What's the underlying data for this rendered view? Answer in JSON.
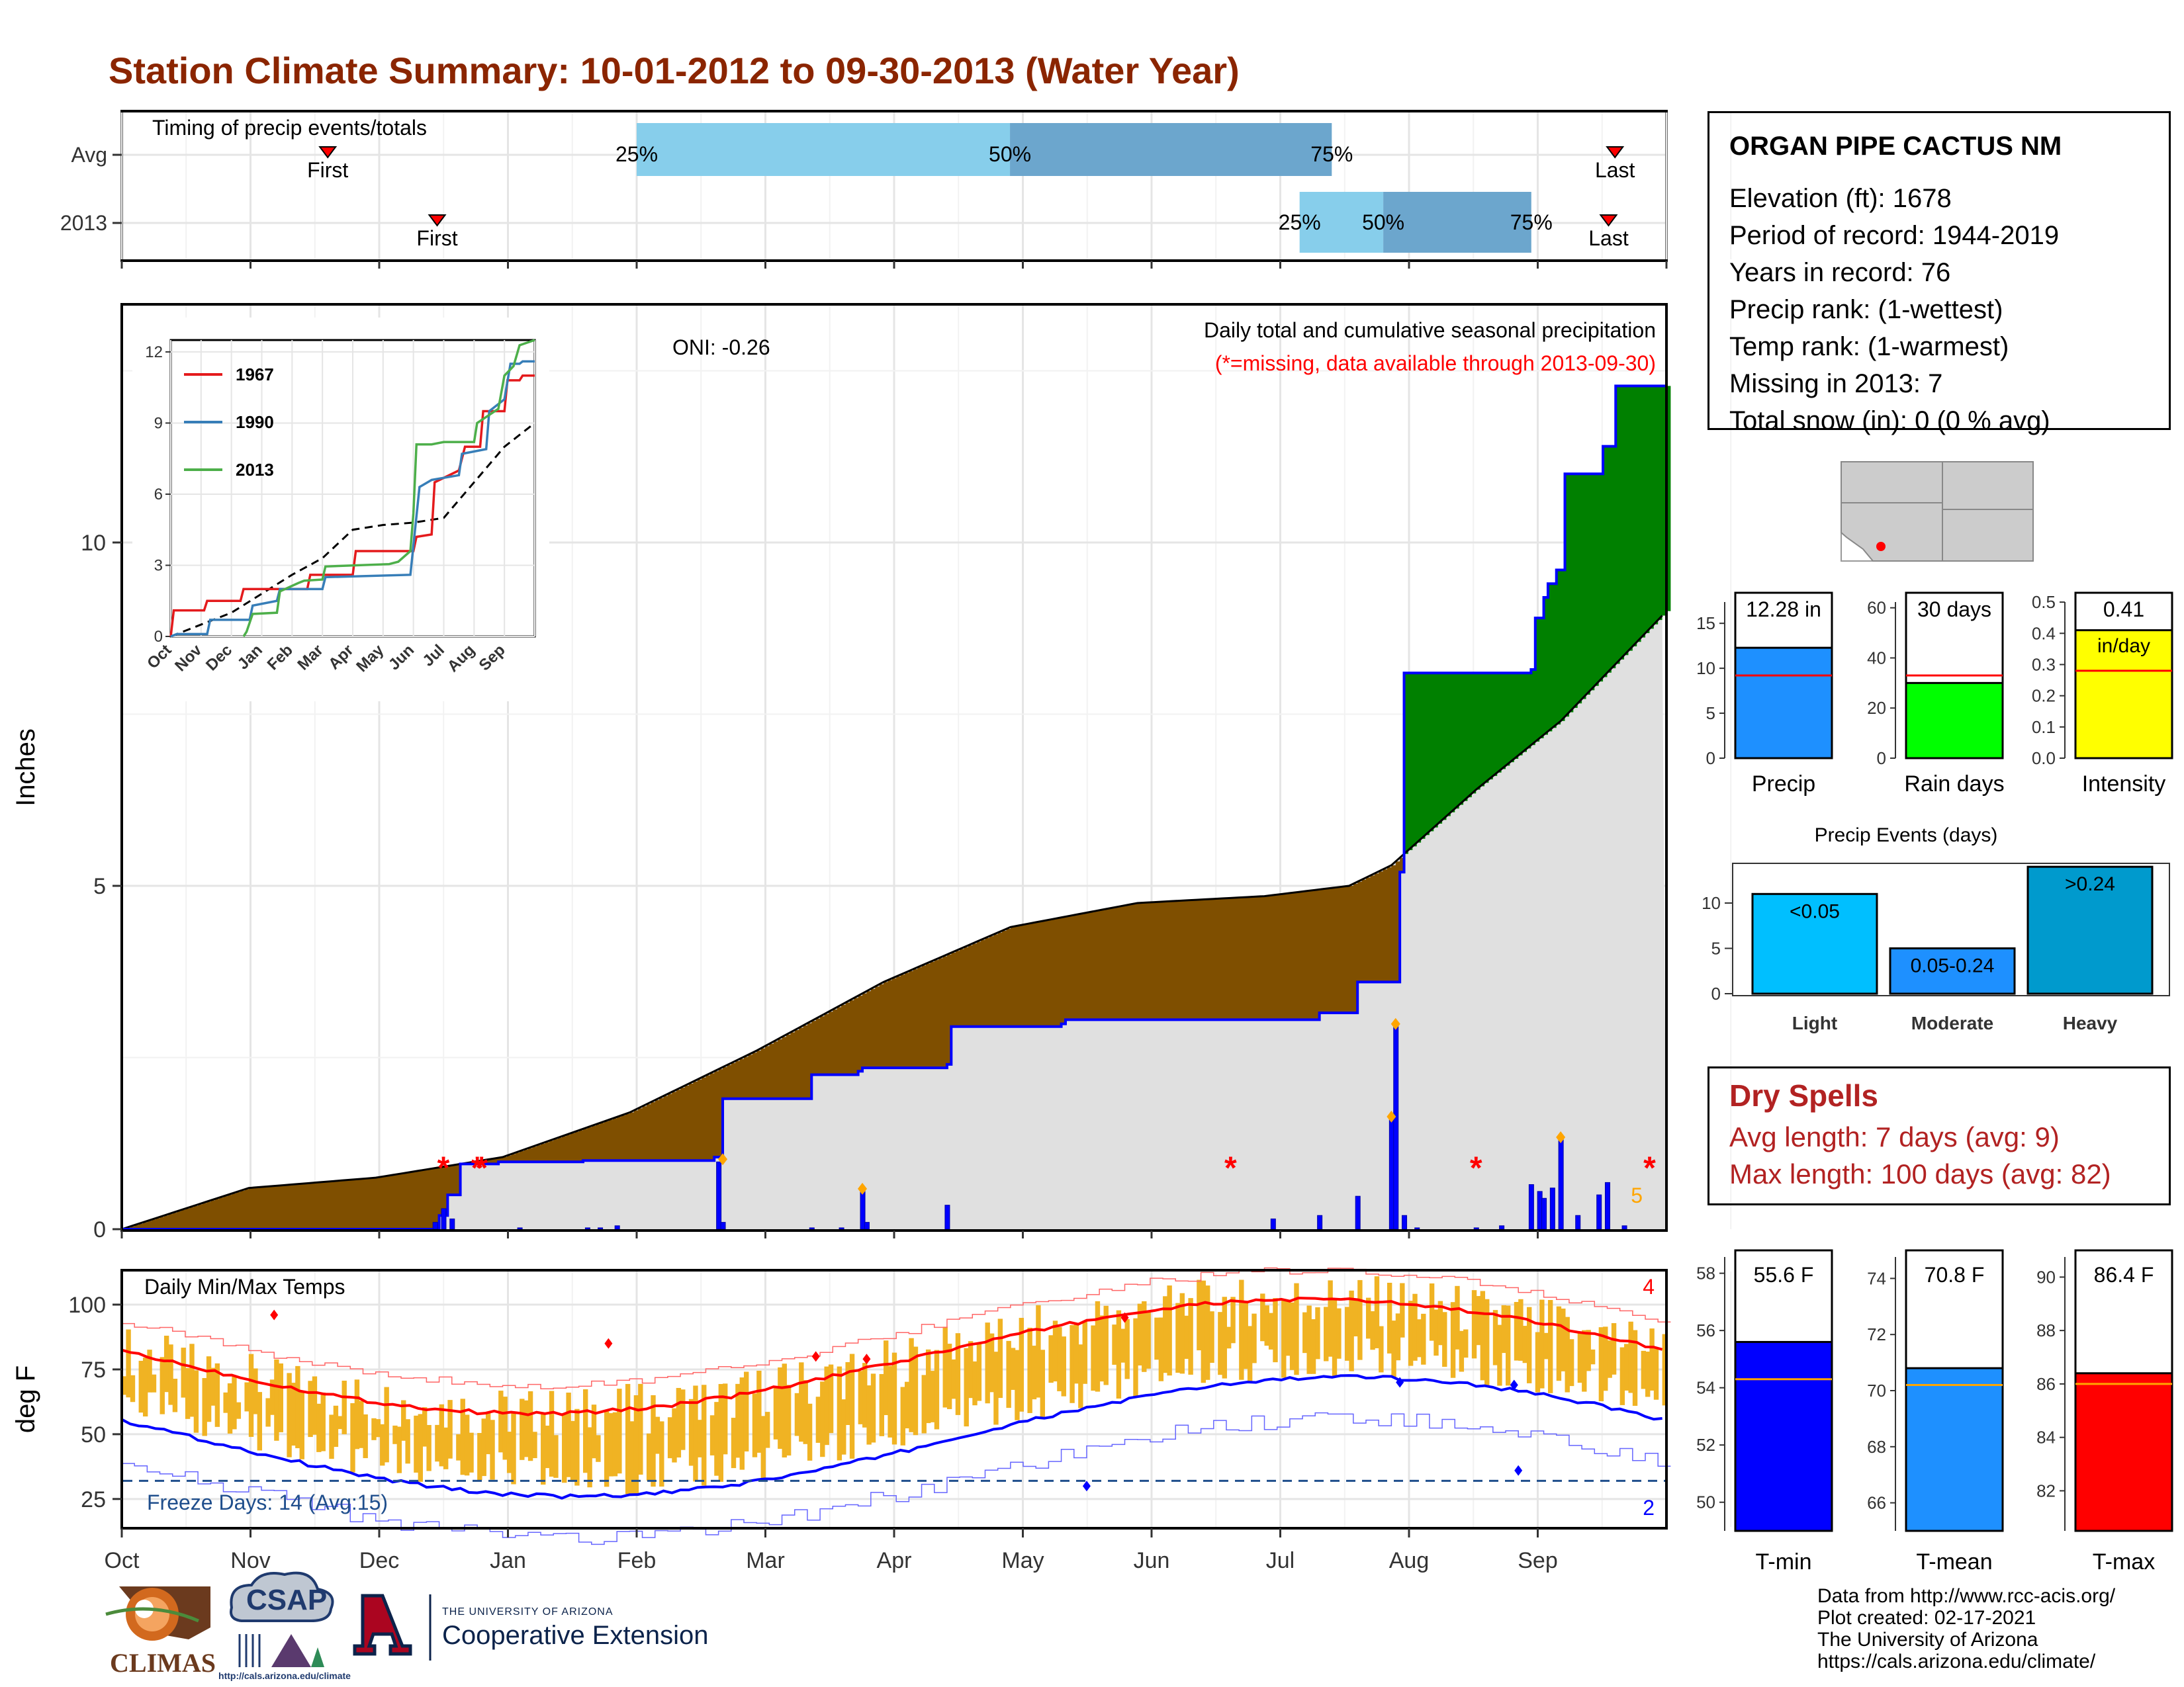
{
  "title": "Station Climate Summary: 10-01-2012 to 09-30-2013 (Water Year)",
  "timing": {
    "label": "Timing of precip events/totals",
    "rows": [
      {
        "name": "Avg",
        "first": "First",
        "last": "Last",
        "p25": "25%",
        "p50": "50%",
        "p75": "75%",
        "first_month": 1.6,
        "last_month": 11.6,
        "q25": 4.0,
        "q50": 6.9,
        "q75": 9.4
      },
      {
        "name": "2013",
        "first": "First",
        "last": "Last",
        "p25": "25%",
        "p50": "50%",
        "p75": "75%",
        "first_month": 2.45,
        "last_month": 11.55,
        "q25": 9.15,
        "q50": 9.8,
        "q75": 10.95
      }
    ]
  },
  "station": {
    "name": "ORGAN PIPE CACTUS NM",
    "elevation": "Elevation (ft): 1678",
    "period": "Period of record: 1944-2019",
    "years": "Years in record: 76",
    "precip_rank": "Precip rank:  (1-wettest)",
    "temp_rank": "Temp rank:  (1-warmest)",
    "missing": "Missing in 2013: 7",
    "snow": "Total snow (in): 0 (0 % avg)"
  },
  "precip_panel": {
    "ylabel": "Inches",
    "yticks": [
      "0",
      "5",
      "10"
    ],
    "oni": "ONI: -0.26",
    "label1": "Daily total and cumulative seasonal precipitation",
    "label2": "(*=missing, data available through 2013-09-30)",
    "count_label": "5",
    "colors": {
      "deficit": "#7F4F00",
      "surplus": "#008000",
      "avg_area": "#E0E0E0",
      "obs_line": "#0000FF"
    }
  },
  "inset": {
    "yticks": [
      "0",
      "3",
      "6",
      "9",
      "12"
    ],
    "months": [
      "Oct",
      "Nov",
      "Dec",
      "Jan",
      "Feb",
      "Mar",
      "Apr",
      "May",
      "Jun",
      "Jul",
      "Aug",
      "Sep"
    ],
    "legend": [
      {
        "name": "1967",
        "color": "#E41A1C"
      },
      {
        "name": "1990",
        "color": "#377EB8"
      },
      {
        "name": "2013",
        "color": "#4DAF4A"
      }
    ]
  },
  "temp_panel": {
    "ylabel": "deg F",
    "yticks": [
      "25",
      "50",
      "75",
      "100"
    ],
    "label": "Daily Min/Max Temps",
    "freeze": "Freeze Days: 14 (Avg:15)",
    "count_max": "4",
    "count_min": "2"
  },
  "xaxis_months": [
    "Oct",
    "Nov",
    "Dec",
    "Jan",
    "Feb",
    "Mar",
    "Apr",
    "May",
    "Jun",
    "Jul",
    "Aug",
    "Sep"
  ],
  "bar_panels": {
    "precip": {
      "ticks": [
        "0",
        "5",
        "10",
        "15"
      ],
      "value_label": "12.28 in",
      "label": "Precip",
      "value": 12.28,
      "avg": 9.2,
      "color": "#1E90FF"
    },
    "raindays": {
      "ticks": [
        "0",
        "20",
        "40",
        "60"
      ],
      "value_label": "30 days",
      "label": "Rain days",
      "value": 30,
      "avg": 33,
      "color": "#00FF00"
    },
    "intensity": {
      "ticks": [
        "0.0",
        "0.1",
        "0.2",
        "0.3",
        "0.4",
        "0.5"
      ],
      "value_label": "0.41",
      "unit": "in/day",
      "label": "Intensity",
      "value": 0.41,
      "avg": 0.28,
      "color": "#FFFF00"
    }
  },
  "events": {
    "title": "Precip Events (days)",
    "ticks": [
      "0",
      "5",
      "10"
    ],
    "bars": [
      {
        "label": "Light",
        "text": "<0.05",
        "value": 11,
        "color": "#00BFFF"
      },
      {
        "label": "Moderate",
        "text": "0.05-0.24",
        "value": 5,
        "color": "#1E90FF"
      },
      {
        "label": "Heavy",
        "text": ">0.24",
        "value": 14,
        "color": "#009ACD"
      }
    ]
  },
  "dry_spells": {
    "title": "Dry Spells",
    "avg": "Avg length: 7 days (avg: 9)",
    "max": "Max length: 100 days (avg: 82)"
  },
  "temp_bars": {
    "tmin": {
      "ticks": [
        "50",
        "52",
        "54",
        "56",
        "58"
      ],
      "value_label": "55.6 F",
      "label": "T-min",
      "value": 55.6,
      "avg": 54.3,
      "min": 49.0,
      "max": 58.8,
      "color": "#0000FF"
    },
    "tmean": {
      "ticks": [
        "66",
        "68",
        "70",
        "72",
        "74"
      ],
      "value_label": "70.8 F",
      "label": "T-mean",
      "value": 70.8,
      "avg": 70.2,
      "min": 65.0,
      "max": 75.0,
      "color": "#1E90FF"
    },
    "tmax": {
      "ticks": [
        "82",
        "84",
        "86",
        "88",
        "90"
      ],
      "value_label": "86.4 F",
      "label": "T-max",
      "value": 86.4,
      "avg": 86.0,
      "min": 80.5,
      "max": 91.0,
      "color": "#FF0000"
    }
  },
  "credits": {
    "line1": "Data from http://www.rcc-acis.org/",
    "line2": "Plot created: 02-17-2021",
    "line3": "The University of Arizona",
    "line4": "https://cals.arizona.edu/climate/"
  },
  "logos": {
    "climas": "CLIMAS",
    "csap": "CSAP",
    "ua_small": "THE UNIVERSITY OF ARIZONA",
    "ua_big": "Cooperative Extension"
  }
}
